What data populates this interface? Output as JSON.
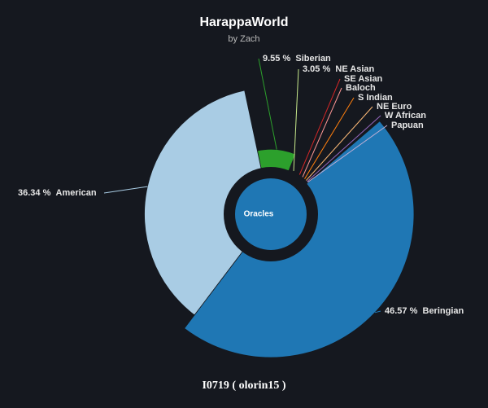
{
  "chart_data": {
    "type": "pie",
    "title": "HarappaWorld",
    "subtitle": "by Zach",
    "center_label": "Oracles",
    "footer": "I0719 ( olorin15 )",
    "categories": [
      "Siberian",
      "NE Asian",
      "SE Asian",
      "Baloch",
      "S Indian",
      "NE Euro",
      "W African",
      "Papuan",
      "Beringian",
      "American"
    ],
    "values": [
      9.55,
      3.05,
      1.5,
      1.0,
      0.8,
      0.6,
      0.35,
      0.24,
      46.57,
      36.34
    ],
    "value_labels": [
      "9.55 %",
      "3.05 %",
      null,
      null,
      null,
      null,
      null,
      null,
      "46.57 %",
      "36.34 %"
    ],
    "colors": [
      "#2ca02c",
      "#c7e98c",
      "#d62728",
      "#ff9896",
      "#ff7f0e",
      "#ffbb78",
      "#9467bd",
      "#c5b0d5",
      "#1f77b4",
      "#a9cce4"
    ]
  }
}
